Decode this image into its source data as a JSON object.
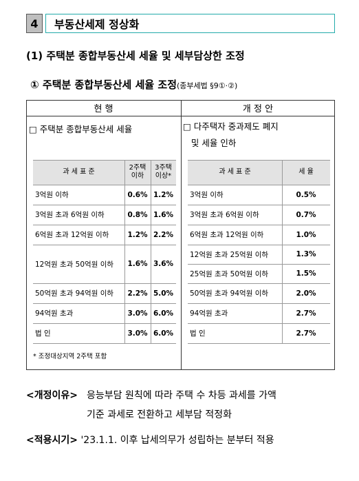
{
  "section": {
    "number": "4",
    "title": "부동산세제 정상화"
  },
  "heading1": "(1) 주택분 종합부동산세 세율 및 세부담상한 조정",
  "heading2": {
    "text": "① 주택분 종합부동산세 세율 조정",
    "ref": "(종부세법 §9①·②)"
  },
  "table": {
    "current": {
      "header": "현 행",
      "title": "□ 주택분 종합부동산세 세율",
      "columns": [
        "과 세 표 준",
        "2주택\n이하",
        "3주택\n이상*"
      ],
      "rows": [
        [
          "3억원 이하",
          "0.6%",
          "1.2%"
        ],
        [
          "3억원 초과 6억원 이하",
          "0.8%",
          "1.6%"
        ],
        [
          "6억원 초과 12억원 이하",
          "1.2%",
          "2.2%"
        ],
        [
          "12억원 초과 50억원 이하",
          "1.6%",
          "3.6%"
        ],
        [
          "50억원 초과 94억원 이하",
          "2.2%",
          "5.0%"
        ],
        [
          "94억원 초과",
          "3.0%",
          "6.0%"
        ],
        [
          "법 인",
          "3.0%",
          "6.0%"
        ]
      ],
      "note": "* 조정대상지역 2주택 포함"
    },
    "revised": {
      "header": "개 정 안",
      "title": "□ 다주택자 중과제도 폐지\n   및 세율 인하",
      "columns": [
        "과 세 표 준",
        "세 율"
      ],
      "rows": [
        [
          "3억원 이하",
          "0.5%"
        ],
        [
          "3억원 초과 6억원 이하",
          "0.7%"
        ],
        [
          "6억원 초과 12억원 이하",
          "1.0%"
        ],
        [
          "12억원 초과 25억원 이하",
          "1.3%"
        ],
        [
          "25억원 초과 50억원 이하",
          "1.5%"
        ],
        [
          "50억원 초과 94억원 이하",
          "2.0%"
        ],
        [
          "94억원 초과",
          "2.7%"
        ],
        [
          "법 인",
          "2.7%"
        ]
      ]
    }
  },
  "reason": {
    "label": "<개정이유>",
    "text": "응능부담 원칙에 따라 주택 수 차등 과세를 가액\n기준 과세로 전환하고 세부담 적정화"
  },
  "effective": {
    "label": "<적용시기>",
    "text": "'23.1.1. 이후 납세의무가 성립하는 분부터 적용"
  }
}
